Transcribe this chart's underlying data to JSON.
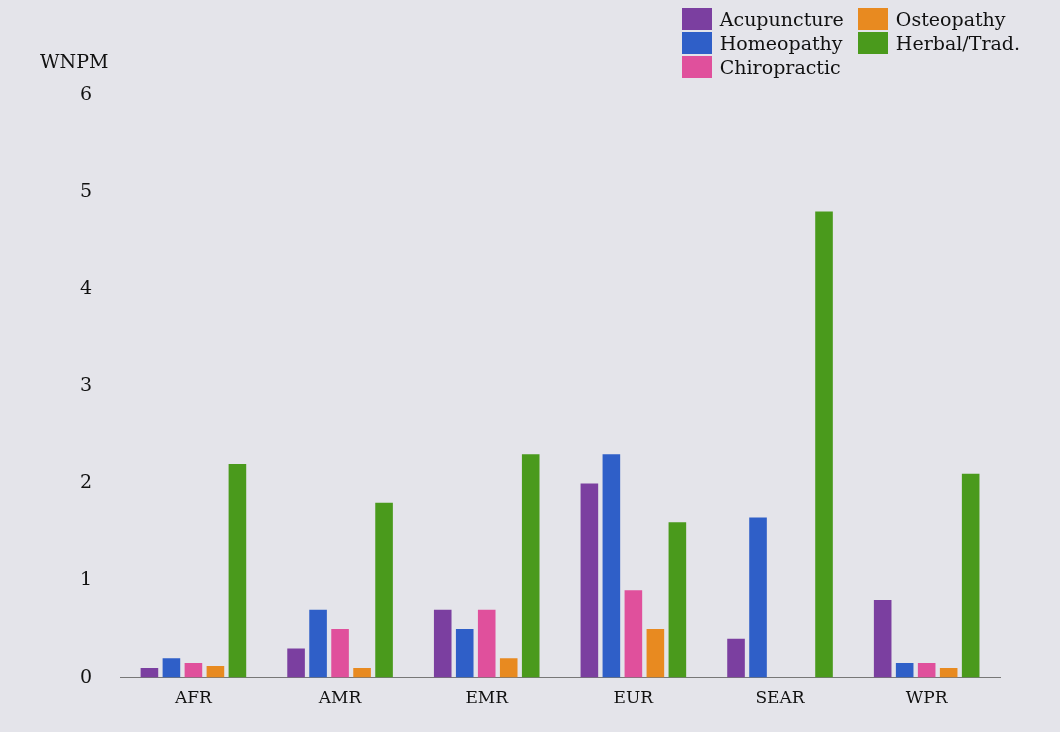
{
  "chart_data": {
    "type": "bar",
    "ylabel": "WNPM",
    "categories": [
      "AFR",
      "AMR",
      "EMR",
      "EUR",
      "SEAR",
      "WPR"
    ],
    "series": [
      {
        "name": "Acupuncture",
        "color": "#7b3fa0",
        "values": [
          0.1,
          0.3,
          0.7,
          2.0,
          0.4,
          0.8
        ]
      },
      {
        "name": "Homeopathy",
        "color": "#2f5fc8",
        "values": [
          0.2,
          0.7,
          0.5,
          2.3,
          1.65,
          0.15
        ]
      },
      {
        "name": "Chiropractic",
        "color": "#e0509c",
        "values": [
          0.15,
          0.5,
          0.7,
          0.9,
          null,
          0.15
        ]
      },
      {
        "name": "Osteopathy",
        "color": "#e88a20",
        "values": [
          0.12,
          0.1,
          0.2,
          0.5,
          null,
          0.1
        ]
      },
      {
        "name": "Herbal/Trad.",
        "color": "#4a9a1c",
        "values": [
          2.2,
          1.8,
          2.3,
          1.6,
          4.8,
          2.1
        ]
      }
    ],
    "ylim": [
      0,
      6
    ],
    "yticks": [
      0,
      1,
      2,
      3,
      4,
      5,
      6
    ],
    "legend": "top right"
  }
}
